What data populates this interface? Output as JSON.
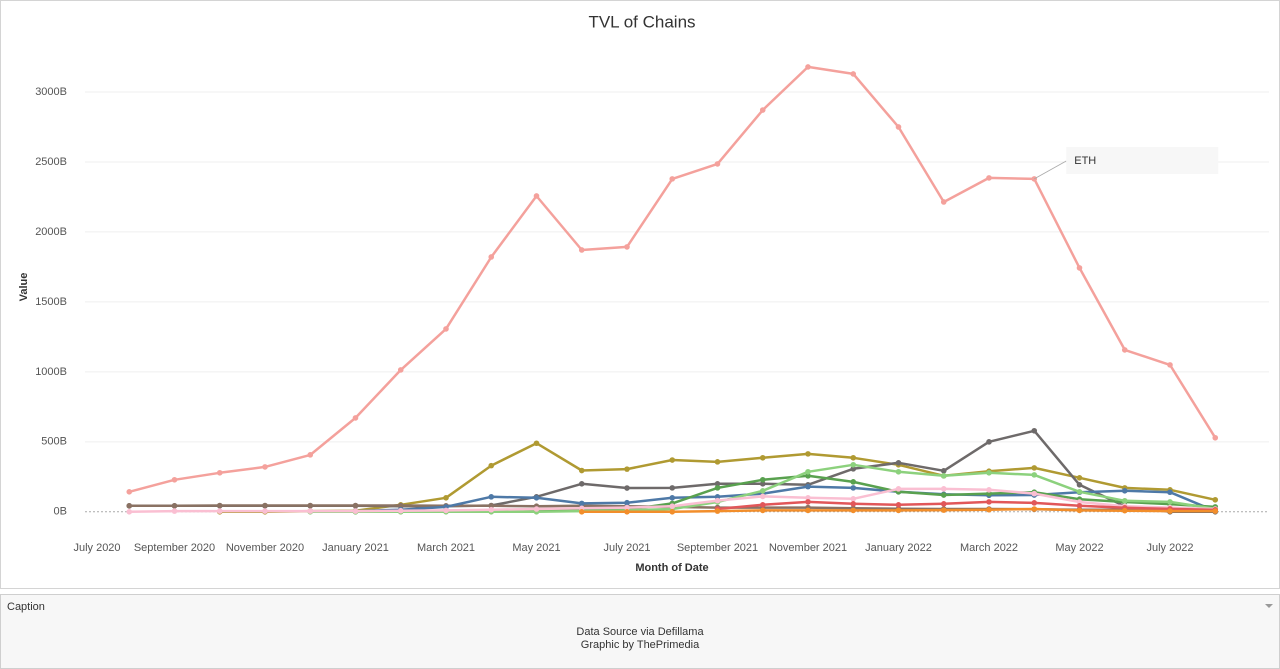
{
  "chart_data": {
    "type": "line",
    "title": "TVL of Chains",
    "x_label": "Month of Date",
    "y_label": "Value",
    "categories": [
      "July 2020",
      null,
      "September 2020",
      null,
      "November 2020",
      null,
      "January 2021",
      null,
      "March 2021",
      null,
      "May 2021",
      null,
      "July 2021",
      null,
      "September 2021",
      null,
      "November 2021",
      null,
      "January 2022",
      null,
      "March 2022",
      null,
      "May 2022",
      null,
      "July 2022",
      null
    ],
    "ylim": [
      -180,
      3350
    ],
    "yticks": [
      {
        "value": 0,
        "label": "0B"
      },
      {
        "value": 500,
        "label": "500B"
      },
      {
        "value": 1000,
        "label": "1000B"
      },
      {
        "value": 1500,
        "label": "1500B"
      },
      {
        "value": 2000,
        "label": "2000B"
      },
      {
        "value": 2500,
        "label": "2500B"
      },
      {
        "value": 3000,
        "label": "3000B"
      }
    ],
    "grid": true,
    "series": [
      {
        "name": "ETH",
        "color": "#f4a19c",
        "values": [
          null,
          143,
          229,
          279,
          321,
          407,
          671,
          1014,
          1307,
          1821,
          2257,
          1871,
          1893,
          2379,
          2486,
          2871,
          3179,
          3129,
          2750,
          2214,
          2386,
          2379,
          1743,
          1157,
          1050,
          529
        ]
      },
      {
        "color": "#b09a32",
        "values": [
          null,
          null,
          null,
          0,
          0,
          5,
          8,
          50,
          100,
          330,
          490,
          295,
          305,
          370,
          357,
          386,
          414,
          386,
          336,
          257,
          290,
          314,
          243,
          171,
          157,
          86
        ]
      },
      {
        "color": "#6e6a6a",
        "values": [
          null,
          43,
          43,
          43,
          43,
          43,
          43,
          40,
          40,
          45,
          107,
          200,
          170,
          171,
          200,
          200,
          193,
          307,
          350,
          293,
          500,
          579,
          193,
          40,
          0,
          0
        ]
      },
      {
        "color": "#8a7263",
        "values": [
          null,
          43,
          43,
          45,
          45,
          45,
          45,
          45,
          43,
          43,
          40,
          43,
          40,
          35,
          30,
          30,
          30,
          25,
          22,
          20,
          20,
          18,
          15,
          15,
          12,
          10
        ]
      },
      {
        "color": "#4e79a7",
        "values": [
          null,
          null,
          null,
          null,
          null,
          null,
          5,
          15,
          35,
          107,
          100,
          60,
          65,
          100,
          107,
          130,
          180,
          171,
          143,
          125,
          118,
          120,
          140,
          150,
          140,
          5
        ]
      },
      {
        "color": "#59a14f",
        "values": [
          null,
          null,
          null,
          null,
          null,
          null,
          0,
          2,
          5,
          8,
          10,
          10,
          15,
          60,
          171,
          229,
          257,
          214,
          143,
          120,
          130,
          140,
          90,
          70,
          55,
          35
        ]
      },
      {
        "color": "#8cd17d",
        "values": [
          null,
          null,
          null,
          null,
          null,
          0,
          0,
          0,
          0,
          0,
          0,
          5,
          10,
          20,
          70,
          150,
          286,
          336,
          286,
          257,
          279,
          264,
          143,
          79,
          71,
          21
        ]
      },
      {
        "color": "#fabfd2",
        "values": [
          null,
          0,
          5,
          5,
          5,
          5,
          5,
          8,
          10,
          15,
          20,
          25,
          30,
          40,
          80,
          110,
          100,
          93,
          164,
          164,
          157,
          130,
          70,
          40,
          30,
          20
        ]
      },
      {
        "color": "#e15759",
        "values": [
          null,
          null,
          null,
          null,
          null,
          null,
          null,
          null,
          null,
          null,
          null,
          null,
          null,
          null,
          20,
          50,
          71,
          57,
          50,
          57,
          71,
          64,
          43,
          29,
          21,
          14
        ]
      },
      {
        "color": "#f28e2b",
        "values": [
          null,
          null,
          null,
          null,
          null,
          null,
          null,
          null,
          null,
          null,
          null,
          0,
          0,
          0,
          5,
          10,
          10,
          10,
          10,
          12,
          15,
          20,
          10,
          8,
          5,
          5
        ]
      }
    ]
  },
  "caption": {
    "title": "Caption",
    "lines": [
      "Data Source via Defillama",
      "Graphic by ThePrimedia"
    ]
  }
}
